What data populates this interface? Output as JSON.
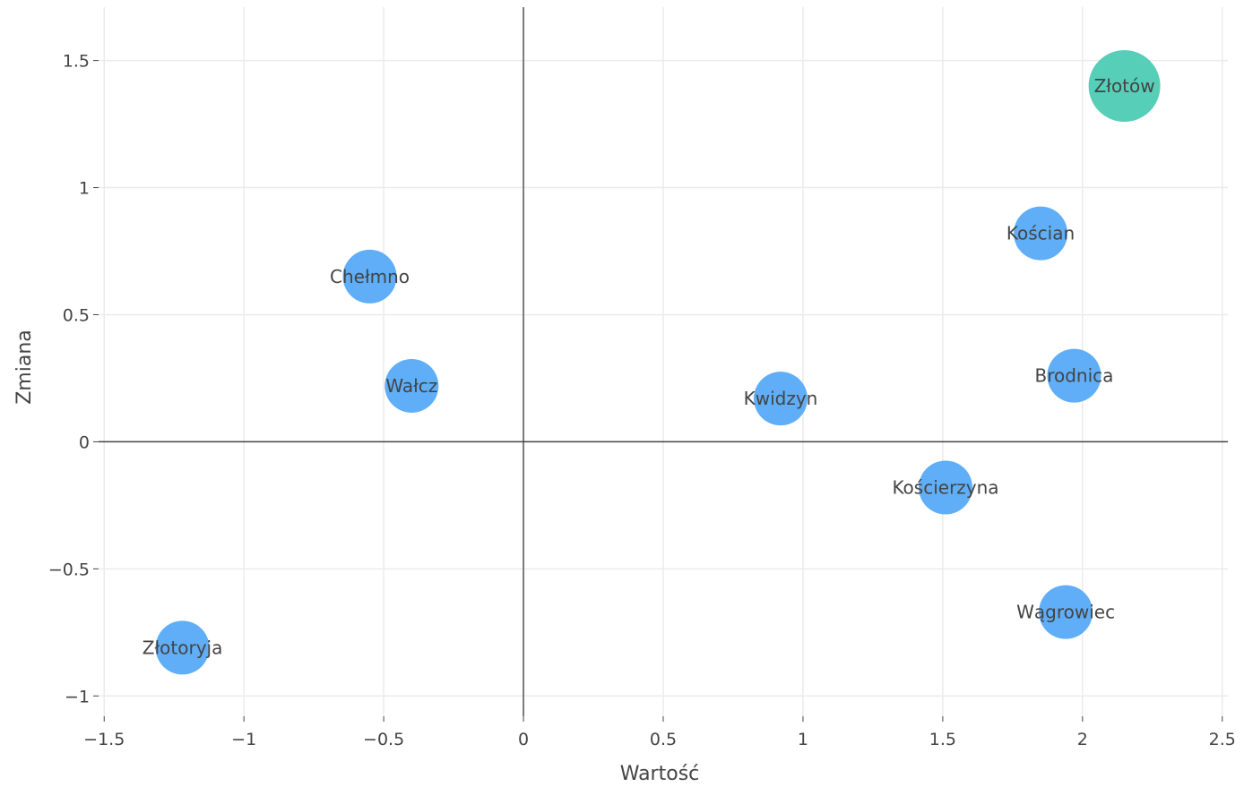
{
  "chart_data": {
    "type": "scatter",
    "xlabel": "Wartość",
    "ylabel": "Zmiana",
    "xlim": [
      -1.52,
      2.52
    ],
    "ylim": [
      -1.08,
      1.71
    ],
    "grid": true,
    "x_ticks": [
      -1.5,
      -1,
      -0.5,
      0,
      0.5,
      1,
      1.5,
      2,
      2.5
    ],
    "y_ticks": [
      -1,
      -0.5,
      0,
      0.5,
      1,
      1.5
    ],
    "x_tick_labels": [
      "−1.5",
      "−1",
      "−0.5",
      "0",
      "0.5",
      "1",
      "1.5",
      "2",
      "2.5"
    ],
    "y_tick_labels": [
      "−1",
      "−0.5",
      "0",
      "0.5",
      "1",
      "1.5"
    ],
    "colors": {
      "default": "#5aabf7",
      "highlight": "#52cdb6"
    },
    "points": [
      {
        "label": "Złotów",
        "x": 2.15,
        "y": 1.4,
        "size": "large",
        "color": "#52cdb6"
      },
      {
        "label": "Kościan",
        "x": 1.85,
        "y": 0.82,
        "size": "small",
        "color": "#5aabf7"
      },
      {
        "label": "Chełmno",
        "x": -0.55,
        "y": 0.65,
        "size": "small",
        "color": "#5aabf7"
      },
      {
        "label": "Wałcz",
        "x": -0.4,
        "y": 0.22,
        "size": "small",
        "color": "#5aabf7"
      },
      {
        "label": "Kwidzyn",
        "x": 0.92,
        "y": 0.17,
        "size": "small",
        "color": "#5aabf7"
      },
      {
        "label": "Brodnica",
        "x": 1.97,
        "y": 0.26,
        "size": "small",
        "color": "#5aabf7"
      },
      {
        "label": "Kościerzyna",
        "x": 1.51,
        "y": -0.18,
        "size": "small",
        "color": "#5aabf7"
      },
      {
        "label": "Wągrowiec",
        "x": 1.94,
        "y": -0.67,
        "size": "small",
        "color": "#5aabf7"
      },
      {
        "label": "Złotoryja",
        "x": -1.22,
        "y": -0.81,
        "size": "small",
        "color": "#5aabf7"
      }
    ]
  }
}
